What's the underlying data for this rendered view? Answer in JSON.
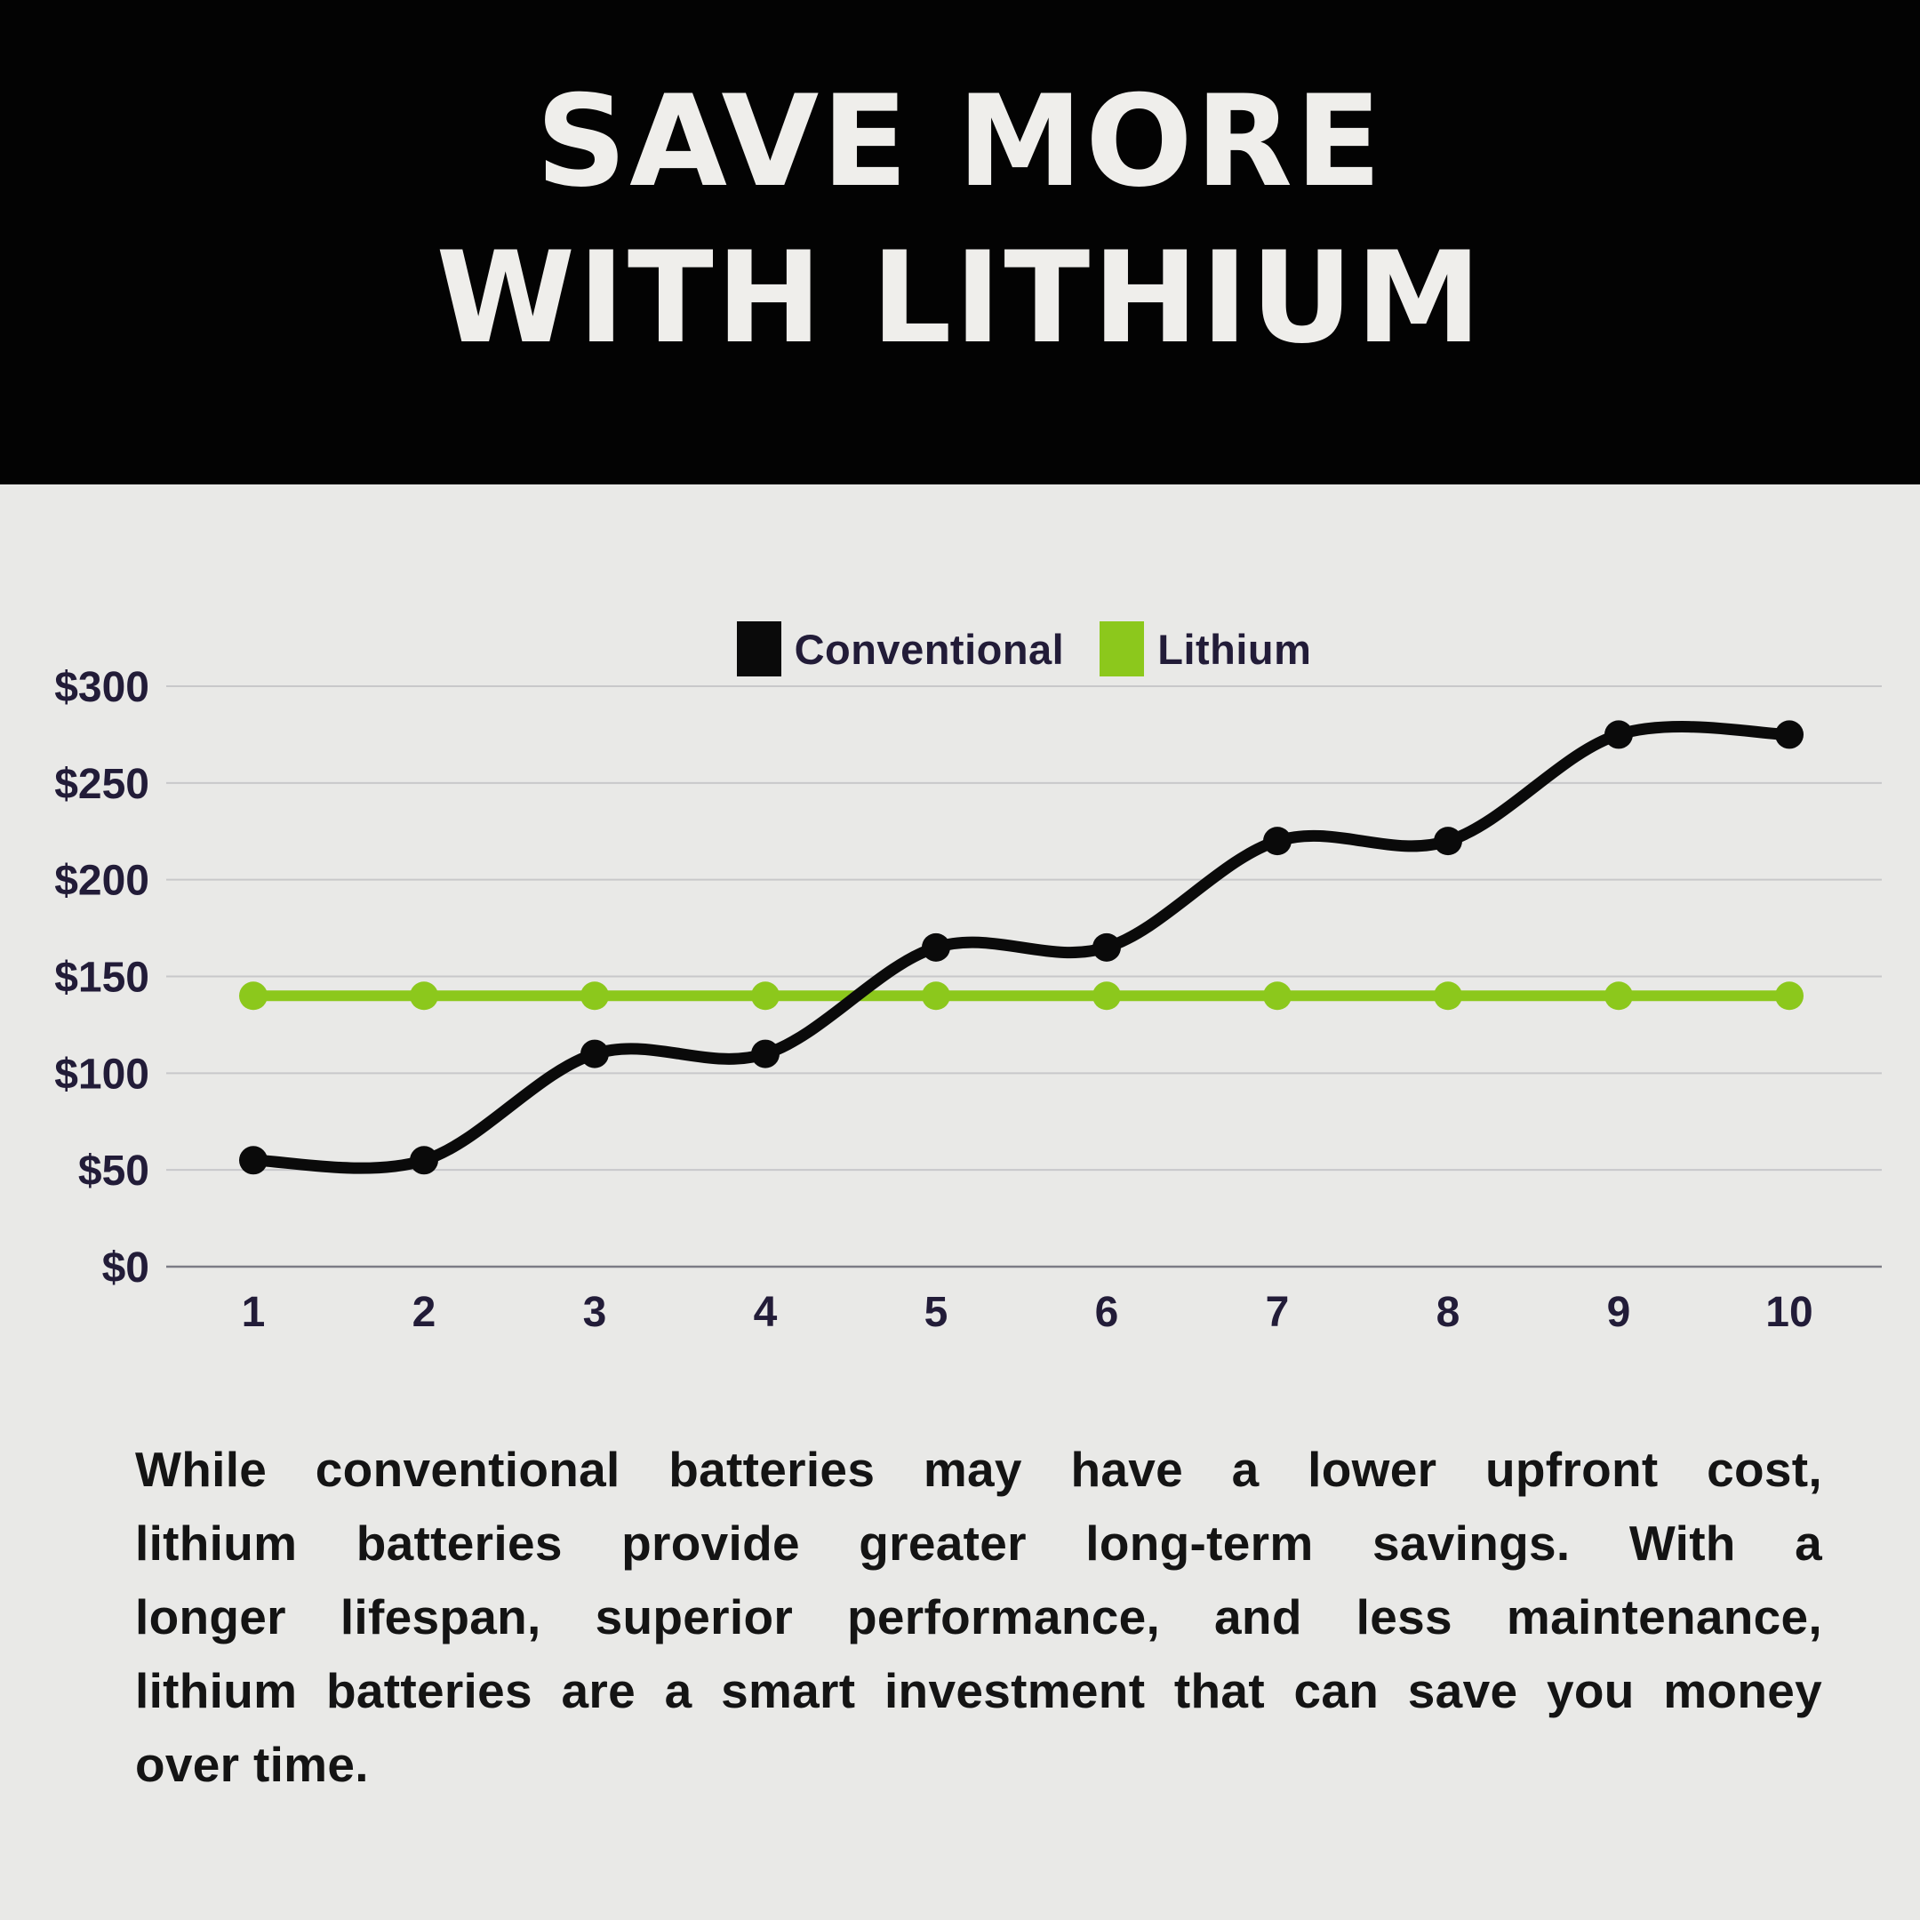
{
  "header": {
    "title_line1": "SAVE MORE",
    "title_line2": "WITH LITHIUM"
  },
  "legend": {
    "items": [
      {
        "label": "Conventional",
        "color": "#0a0a0a"
      },
      {
        "label": "Lithium",
        "color": "#8cc81c"
      }
    ]
  },
  "chart_data": {
    "type": "line",
    "title": "",
    "xlabel": "",
    "ylabel": "",
    "x": [
      1,
      2,
      3,
      4,
      5,
      6,
      7,
      8,
      9,
      10
    ],
    "series": [
      {
        "name": "Conventional",
        "color": "#0a0a0a",
        "values": [
          55,
          55,
          110,
          110,
          165,
          165,
          220,
          220,
          275,
          275
        ],
        "smooth": true
      },
      {
        "name": "Lithium",
        "color": "#8cc81c",
        "values": [
          140,
          140,
          140,
          140,
          140,
          140,
          140,
          140,
          140,
          140
        ],
        "smooth": false
      }
    ],
    "ylim": [
      0,
      300
    ],
    "yticks": [
      {
        "value": 0,
        "label": "$0"
      },
      {
        "value": 50,
        "label": "$50"
      },
      {
        "value": 100,
        "label": "$100"
      },
      {
        "value": 150,
        "label": "$150"
      },
      {
        "value": 200,
        "label": "$200"
      },
      {
        "value": 250,
        "label": "$250"
      },
      {
        "value": 300,
        "label": "$300"
      }
    ],
    "grid": true,
    "legend_position": "top-center",
    "grid_color": "#c8c8ca",
    "x_axis_color": "#7c7c86",
    "tick_label_color": "#221c38"
  },
  "body": {
    "lines": [
      "While conventional batteries may have a lower upfront cost,",
      "lithium batteries provide greater long-term savings. With a",
      "longer lifespan, superior performance, and less maintenance,",
      "lithium batteries are a smart investment that can save you money",
      "over time."
    ]
  },
  "colors": {
    "page_bg": "#e9e9e7",
    "header_bg": "#030303",
    "title_color": "#efeeeb",
    "text_dark": "#221c38",
    "body_text": "#141414"
  }
}
